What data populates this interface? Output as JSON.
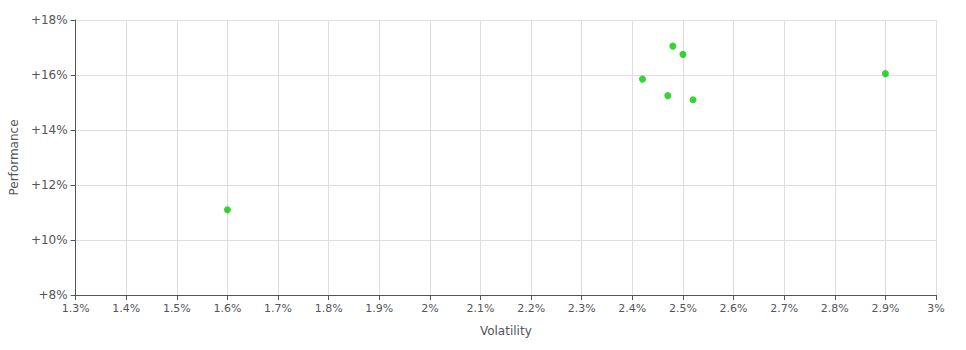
{
  "chart_data": {
    "type": "scatter",
    "x": [
      1.6,
      2.42,
      2.47,
      2.48,
      2.5,
      2.52,
      2.9
    ],
    "values": [
      11.1,
      15.85,
      15.25,
      17.05,
      16.75,
      15.1,
      16.05
    ],
    "color": "#00cc00",
    "xlabel": "Volatility",
    "ylabel": "Performance",
    "xlim": [
      1.3,
      3.0
    ],
    "ylim": [
      8,
      18
    ],
    "xticks": [
      {
        "value": 1.3,
        "label": "1.3%"
      },
      {
        "value": 1.4,
        "label": "1.4%"
      },
      {
        "value": 1.5,
        "label": "1.5%"
      },
      {
        "value": 1.6,
        "label": "1.6%"
      },
      {
        "value": 1.7,
        "label": "1.7%"
      },
      {
        "value": 1.8,
        "label": "1.8%"
      },
      {
        "value": 1.9,
        "label": "1.9%"
      },
      {
        "value": 2.0,
        "label": "2%"
      },
      {
        "value": 2.1,
        "label": "2.1%"
      },
      {
        "value": 2.2,
        "label": "2.2%"
      },
      {
        "value": 2.3,
        "label": "2.3%"
      },
      {
        "value": 2.4,
        "label": "2.4%"
      },
      {
        "value": 2.5,
        "label": "2.5%"
      },
      {
        "value": 2.6,
        "label": "2.6%"
      },
      {
        "value": 2.7,
        "label": "2.7%"
      },
      {
        "value": 2.8,
        "label": "2.8%"
      },
      {
        "value": 2.9,
        "label": "2.9%"
      },
      {
        "value": 3.0,
        "label": "3%"
      }
    ],
    "yticks": [
      {
        "value": 8,
        "label": "+8%"
      },
      {
        "value": 10,
        "label": "+10%"
      },
      {
        "value": 12,
        "label": "+12%"
      },
      {
        "value": 14,
        "label": "+14%"
      },
      {
        "value": 16,
        "label": "+16%"
      },
      {
        "value": 18,
        "label": "+18%"
      }
    ],
    "grid": true
  }
}
